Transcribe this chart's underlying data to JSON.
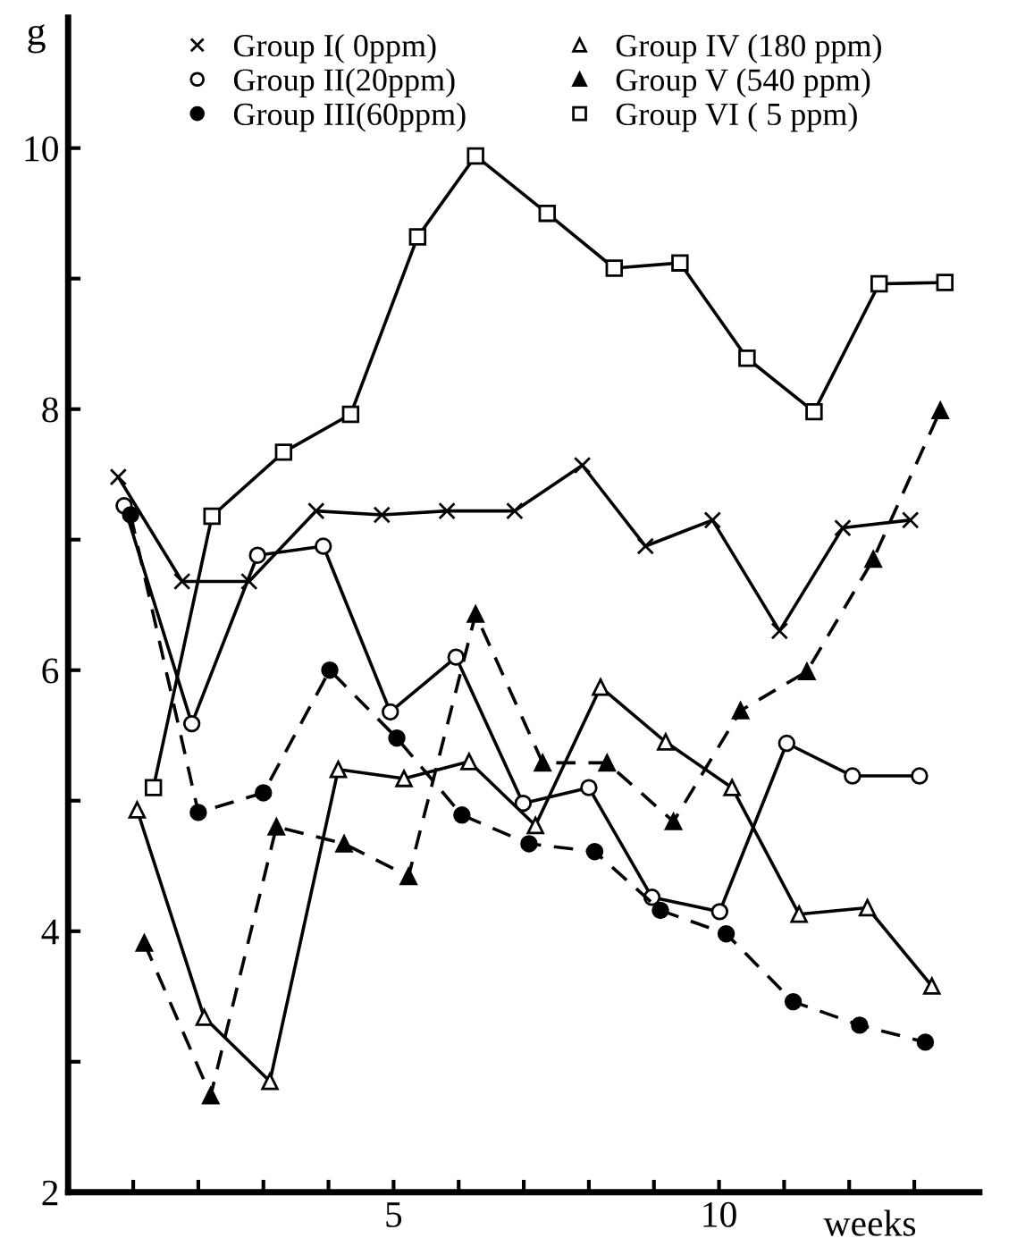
{
  "chart_data": {
    "type": "line",
    "xlabel": "weeks",
    "ylabel": "g",
    "xlim": [
      0,
      14
    ],
    "ylim": [
      2,
      11
    ],
    "xticks": [
      {
        "value": 1,
        "label": null
      },
      {
        "value": 2,
        "label": null
      },
      {
        "value": 3,
        "label": null
      },
      {
        "value": 4,
        "label": null
      },
      5,
      {
        "value": 6,
        "label": null
      },
      {
        "value": 7,
        "label": null
      },
      {
        "value": 8,
        "label": null
      },
      {
        "value": 9,
        "label": null
      },
      10,
      {
        "value": 11,
        "label": null
      },
      {
        "value": 12,
        "label": null
      },
      {
        "value": 13,
        "label": null
      }
    ],
    "yticks": [
      2,
      {
        "value": 3,
        "label": null
      },
      4,
      {
        "value": 5,
        "label": null
      },
      6,
      {
        "value": 7,
        "label": null
      },
      8,
      {
        "value": 9,
        "label": null
      },
      10
    ],
    "grid": false,
    "legend": "top",
    "series": [
      {
        "name": "Group I( 0ppm)",
        "color": "#000000",
        "marker": "cross",
        "line_style": "solid",
        "x": [
          0.77,
          1.75,
          2.78,
          3.81,
          4.82,
          5.82,
          6.86,
          7.9,
          8.87,
          9.9,
          10.93,
          11.9,
          12.94
        ],
        "values": [
          7.48,
          6.68,
          6.68,
          7.22,
          7.19,
          7.22,
          7.22,
          7.57,
          6.95,
          7.15,
          6.3,
          7.09,
          7.15
        ]
      },
      {
        "name": "Group II(20ppm)",
        "color": "#000000",
        "marker": "circle",
        "line_style": "solid",
        "x": [
          0.86,
          1.9,
          2.91,
          3.92,
          4.95,
          5.96,
          6.99,
          8.0,
          8.97,
          10.01,
          11.04,
          12.05,
          13.08
        ],
        "values": [
          7.26,
          5.59,
          6.88,
          6.95,
          5.68,
          6.1,
          4.98,
          5.1,
          4.26,
          4.15,
          5.44,
          5.19,
          5.19
        ]
      },
      {
        "name": "Group III(60ppm)",
        "color": "#000000",
        "marker": "circle",
        "line_style": "dashed",
        "x": [
          0.96,
          2.0,
          3.0,
          4.02,
          5.05,
          6.05,
          7.08,
          8.09,
          9.1,
          10.11,
          11.14,
          12.16,
          13.17
        ],
        "values": [
          7.19,
          4.91,
          5.06,
          6.0,
          5.48,
          4.89,
          4.67,
          4.61,
          4.16,
          3.98,
          3.46,
          3.28,
          3.15
        ]
      },
      {
        "name": "Group IV (180 ppm)",
        "color": "#000000",
        "marker": "triangle",
        "line_style": "solid",
        "x": [
          1.06,
          2.09,
          3.1,
          4.15,
          5.16,
          6.16,
          7.18,
          8.18,
          9.18,
          10.2,
          11.23,
          12.28,
          13.27
        ],
        "values": [
          4.93,
          3.34,
          2.85,
          5.24,
          5.17,
          5.3,
          4.81,
          5.87,
          5.45,
          5.1,
          4.13,
          4.18,
          3.58
        ]
      },
      {
        "name": "Group V (540 ppm)",
        "color": "#000000",
        "marker": "triangle",
        "line_style": "dashed",
        "x": [
          1.17,
          2.19,
          3.2,
          4.24,
          5.23,
          6.26,
          7.29,
          8.28,
          9.3,
          10.33,
          11.35,
          12.37,
          13.4
        ],
        "values": [
          3.91,
          2.74,
          4.8,
          4.67,
          4.42,
          6.43,
          5.29,
          5.29,
          4.84,
          5.69,
          5.99,
          6.85,
          7.99
        ]
      },
      {
        "name": "Group VI ( 5 ppm)",
        "color": "#000000",
        "marker": "square",
        "line_style": "solid",
        "x": [
          1.31,
          2.21,
          3.31,
          4.34,
          5.37,
          6.26,
          7.36,
          8.39,
          9.4,
          10.43,
          11.46,
          12.46,
          13.47
        ],
        "values": [
          5.1,
          7.18,
          7.67,
          7.96,
          9.32,
          9.94,
          9.5,
          9.08,
          9.12,
          8.39,
          7.98,
          8.96,
          8.97
        ]
      }
    ]
  }
}
